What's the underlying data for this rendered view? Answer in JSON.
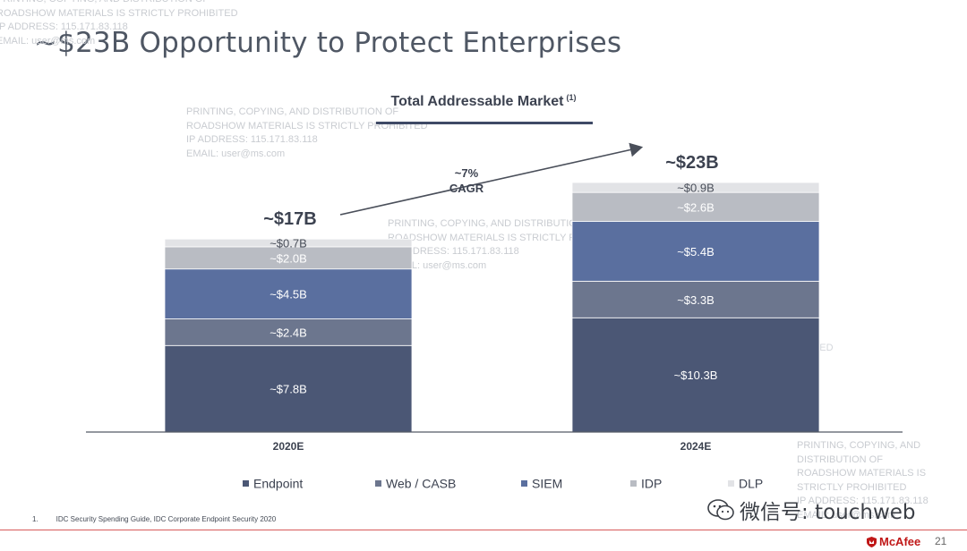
{
  "slide": {
    "title": "~$23B Opportunity to Protect Enterprises",
    "watermark": "PRINTING, COPYING, AND DISTRIBUTION OF\nROADSHOW MATERIALS IS STRICTLY PROHIBITED\nIP ADDRESS: 115.171.83.118\nEMAIL: user@ms.com",
    "footnote_number": "1.",
    "footnote": "IDC Security Spending Guide, IDC Corporate Endpoint Security 2020",
    "page_number": "21",
    "logo_text": "McAfee",
    "wechat_caption": "微信号: touchweb"
  },
  "colors": {
    "Endpoint": "#4b5775",
    "Web / CASB": "#6c768e",
    "SIEM": "#5a6f9f",
    "IDP": "#b9bcc3",
    "DLP": "#e2e3e6",
    "arrow": "#4a4f5a",
    "brand_red": "#c01818"
  },
  "chart_data": {
    "type": "bar",
    "stacked": true,
    "title": "Total Addressable Market",
    "title_footnote": "(1)",
    "categories": [
      "2020E",
      "2024E"
    ],
    "totals": [
      "~$17B",
      "~$23B"
    ],
    "cagr": [
      "~7%",
      "CAGR"
    ],
    "series": [
      {
        "name": "Endpoint",
        "values": [
          7.8,
          10.3
        ],
        "labels": [
          "~$7.8B",
          "~$10.3B"
        ]
      },
      {
        "name": "Web / CASB",
        "values": [
          2.4,
          3.3
        ],
        "labels": [
          "~$2.4B",
          "~$3.3B"
        ]
      },
      {
        "name": "SIEM",
        "values": [
          4.5,
          5.4
        ],
        "labels": [
          "~$4.5B",
          "~$5.4B"
        ]
      },
      {
        "name": "IDP",
        "values": [
          2.0,
          2.6
        ],
        "labels": [
          "~$2.0B",
          "~$2.6B"
        ]
      },
      {
        "name": "DLP",
        "values": [
          0.7,
          0.9
        ],
        "labels": [
          "~$0.7B",
          "~$0.9B"
        ]
      }
    ],
    "legend_position": "bottom",
    "grid": false
  }
}
